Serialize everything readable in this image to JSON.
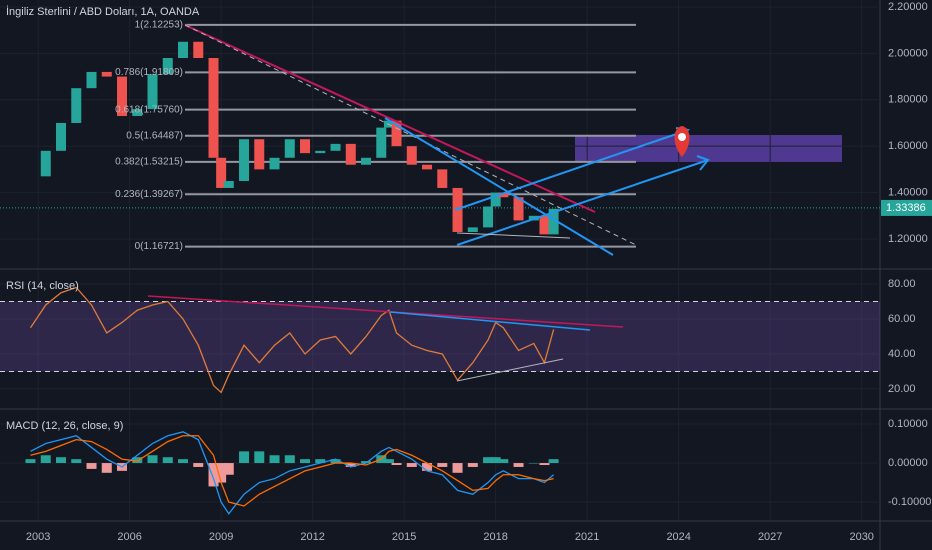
{
  "chart_data": [
    {
      "type": "candlestick",
      "title": "İngiliz Sterlini / ABD Doları, 1A, OANDA",
      "xlim": [
        2001.75,
        2030.6
      ],
      "x": [
        2002.75,
        2003.25,
        2003.75,
        2004.25,
        2004.75,
        2005.25,
        2005.75,
        2006.25,
        2006.75,
        2007.25,
        2007.75,
        2008.25,
        2008.75,
        2009.0,
        2009.25,
        2009.75,
        2010.25,
        2010.75,
        2011.25,
        2011.75,
        2012.25,
        2012.75,
        2013.25,
        2013.75,
        2014.25,
        2014.5,
        2014.75,
        2015.25,
        2015.75,
        2016.25,
        2016.75,
        2017.25,
        2017.75,
        2018.0,
        2018.25,
        2018.75,
        2019.25,
        2019.6,
        2019.9
      ],
      "values": [
        1.47,
        1.58,
        1.7,
        1.85,
        1.92,
        1.9,
        1.73,
        1.76,
        1.91,
        1.98,
        2.05,
        1.98,
        1.55,
        1.42,
        1.45,
        1.63,
        1.5,
        1.55,
        1.63,
        1.57,
        1.58,
        1.61,
        1.52,
        1.55,
        1.68,
        1.71,
        1.6,
        1.52,
        1.5,
        1.42,
        1.23,
        1.25,
        1.34,
        1.4,
        1.38,
        1.28,
        1.3,
        1.22,
        1.33
      ],
      "up_color": "#26a69a",
      "down_color": "#ef5350",
      "ylim": [
        1.075,
        2.23
      ],
      "yticks": [
        {
          "value": 2.2,
          "label": "2.20000"
        },
        {
          "value": 2.0,
          "label": "2.00000"
        },
        {
          "value": 1.8,
          "label": "1.80000"
        },
        {
          "value": 1.6,
          "label": "1.60000"
        },
        {
          "value": 1.4,
          "label": "1.40000"
        },
        {
          "value": 1.2,
          "label": "1.20000"
        }
      ],
      "fib_levels": [
        {
          "value": 2.12253,
          "label": "1(2.12253)"
        },
        {
          "value": 1.91809,
          "label": "0.786(1.91809)"
        },
        {
          "value": 1.7576,
          "label": "0.618(1.75760)"
        },
        {
          "value": 1.64487,
          "label": "0.5(1.64487)"
        },
        {
          "value": 1.53215,
          "label": "0.382(1.53215)"
        },
        {
          "value": 1.39267,
          "label": "0.236(1.39267)"
        },
        {
          "value": 1.16721,
          "label": "0(1.16721)"
        }
      ],
      "last_price": 1.33386,
      "last_price_color": "#26a69a"
    },
    {
      "type": "line",
      "title": "RSI (14, close)",
      "xlim": [
        2001.75,
        2030.6
      ],
      "x": [
        2002.75,
        2003.25,
        2003.75,
        2004.25,
        2004.75,
        2005.25,
        2005.75,
        2006.25,
        2006.75,
        2007.25,
        2007.75,
        2008.25,
        2008.75,
        2009.0,
        2009.25,
        2009.75,
        2010.25,
        2010.75,
        2011.25,
        2011.75,
        2012.25,
        2012.75,
        2013.25,
        2013.75,
        2014.25,
        2014.5,
        2014.75,
        2015.25,
        2015.75,
        2016.25,
        2016.75,
        2017.25,
        2017.75,
        2018.0,
        2018.25,
        2018.75,
        2019.25,
        2019.6,
        2019.9
      ],
      "values": [
        55,
        68,
        75,
        78,
        68,
        52,
        58,
        65,
        68,
        70,
        60,
        45,
        22,
        18,
        28,
        45,
        35,
        45,
        52,
        40,
        48,
        50,
        40,
        50,
        62,
        65,
        52,
        45,
        42,
        40,
        25,
        35,
        48,
        58,
        55,
        42,
        46,
        35,
        54
      ],
      "color": "#e07b39",
      "band": [
        30,
        70
      ],
      "band_color": "#7e57c2",
      "ylim": [
        9.1,
        88
      ],
      "yticks": [
        {
          "value": 80,
          "label": "80.00"
        },
        {
          "value": 60,
          "label": "60.00"
        },
        {
          "value": 40,
          "label": "40.00"
        },
        {
          "value": 20,
          "label": "20.00"
        }
      ]
    },
    {
      "type": "macd",
      "title": "MACD (12, 26, close, 9)",
      "xlim": [
        2001.75,
        2030.6
      ],
      "xticks": [
        2003,
        2006,
        2009,
        2012,
        2015,
        2018,
        2021,
        2024,
        2027,
        2030
      ],
      "x": [
        2002.75,
        2003.25,
        2003.75,
        2004.25,
        2004.75,
        2005.25,
        2005.75,
        2006.25,
        2006.75,
        2007.25,
        2007.75,
        2008.25,
        2008.75,
        2009.0,
        2009.25,
        2009.75,
        2010.25,
        2010.75,
        2011.25,
        2011.75,
        2012.25,
        2012.75,
        2013.25,
        2013.75,
        2014.25,
        2014.5,
        2014.75,
        2015.25,
        2015.75,
        2016.25,
        2016.75,
        2017.25,
        2017.75,
        2018.0,
        2018.25,
        2018.75,
        2019.25,
        2019.6,
        2019.9
      ],
      "series": [
        {
          "color": "#2196f3",
          "values": [
            0.03,
            0.05,
            0.06,
            0.07,
            0.04,
            0.01,
            -0.01,
            0.02,
            0.05,
            0.07,
            0.08,
            0.06,
            -0.04,
            -0.1,
            -0.13,
            -0.08,
            -0.05,
            -0.04,
            -0.02,
            -0.01,
            0,
            0.01,
            -0.01,
            0.0,
            0.03,
            0.04,
            0.03,
            0.01,
            -0.02,
            -0.03,
            -0.07,
            -0.08,
            -0.05,
            -0.03,
            -0.02,
            -0.04,
            -0.04,
            -0.05,
            -0.03
          ]
        },
        {
          "color": "#ff6d00",
          "values": [
            0.02,
            0.03,
            0.045,
            0.06,
            0.055,
            0.035,
            0.01,
            0.005,
            0.03,
            0.055,
            0.07,
            0.07,
            0.02,
            -0.05,
            -0.1,
            -0.11,
            -0.08,
            -0.06,
            -0.04,
            -0.02,
            -0.01,
            0,
            0,
            -0.005,
            0.01,
            0.03,
            0.035,
            0.02,
            0,
            -0.02,
            -0.045,
            -0.07,
            -0.065,
            -0.045,
            -0.03,
            -0.03,
            -0.04,
            -0.045,
            -0.04
          ]
        },
        {
          "up_color": "#26a69a",
          "down_color": "#ef9a9a",
          "values": [
            0.01,
            0.02,
            0.015,
            0.01,
            -0.015,
            -0.025,
            -0.02,
            0.015,
            0.02,
            0.015,
            0.01,
            -0.01,
            -0.06,
            -0.05,
            -0.03,
            0.03,
            0.03,
            0.02,
            0.02,
            0.01,
            0.01,
            0.01,
            -0.01,
            0.005,
            0.02,
            0.01,
            -0.005,
            -0.01,
            -0.02,
            -0.01,
            -0.025,
            -0.01,
            0.015,
            0.015,
            0.01,
            -0.01,
            0,
            -0.005,
            0.01
          ]
        }
      ],
      "ylim": [
        -0.146,
        0.136
      ],
      "yticks": [
        {
          "value": 0.1,
          "label": "0.10000"
        },
        {
          "value": 0,
          "label": "0.00000"
        },
        {
          "value": -0.1,
          "label": "-0.10000"
        }
      ]
    }
  ]
}
